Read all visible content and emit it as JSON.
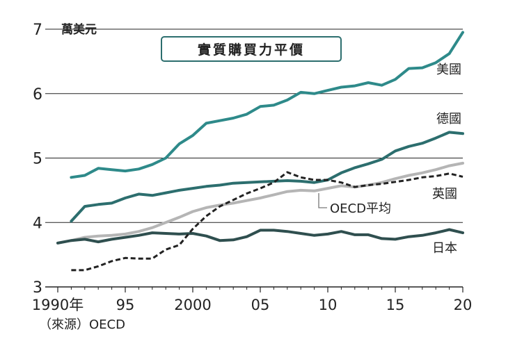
{
  "chart_data": {
    "type": "line",
    "title": "實質購買力平價",
    "ylabel": "萬美元",
    "source": "（來源）OECD",
    "ylim": [
      3,
      7
    ],
    "xlim": [
      1990,
      2020
    ],
    "y_ticks": [
      "3",
      "4",
      "5",
      "6",
      "7"
    ],
    "y_tick_values": [
      3,
      4,
      5,
      6,
      7
    ],
    "x_ticks": [
      "1990年",
      "95",
      "2000",
      "05",
      "10",
      "15",
      "20"
    ],
    "x_tick_values": [
      1990,
      1995,
      2000,
      2005,
      2010,
      2015,
      2020
    ],
    "series": [
      {
        "name": "美國",
        "color": "#2e8a8a",
        "style": "solid",
        "x": [
          1991,
          1992,
          1993,
          1994,
          1995,
          1996,
          1997,
          1998,
          1999,
          2000,
          2001,
          2002,
          2003,
          2004,
          2005,
          2006,
          2007,
          2008,
          2009,
          2010,
          2011,
          2012,
          2013,
          2014,
          2015,
          2016,
          2017,
          2018,
          2019,
          2020
        ],
        "values": [
          4.7,
          4.73,
          4.84,
          4.82,
          4.8,
          4.83,
          4.9,
          5.0,
          5.22,
          5.35,
          5.54,
          5.58,
          5.62,
          5.68,
          5.8,
          5.82,
          5.9,
          6.02,
          6.0,
          6.05,
          6.1,
          6.12,
          6.17,
          6.13,
          6.22,
          6.39,
          6.4,
          6.48,
          6.62,
          6.95
        ]
      },
      {
        "name": "德國",
        "color": "#2c6e6e",
        "style": "solid",
        "x": [
          1991,
          1992,
          1993,
          1994,
          1995,
          1996,
          1997,
          1998,
          1999,
          2000,
          2001,
          2002,
          2003,
          2004,
          2005,
          2006,
          2007,
          2008,
          2009,
          2010,
          2011,
          2012,
          2013,
          2014,
          2015,
          2016,
          2017,
          2018,
          2019,
          2020
        ],
        "values": [
          4.02,
          4.25,
          4.28,
          4.3,
          4.38,
          4.44,
          4.42,
          4.46,
          4.5,
          4.53,
          4.56,
          4.58,
          4.61,
          4.62,
          4.63,
          4.64,
          4.65,
          4.64,
          4.62,
          4.66,
          4.77,
          4.85,
          4.91,
          4.98,
          5.11,
          5.18,
          5.23,
          5.31,
          5.4,
          5.38
        ]
      },
      {
        "name": "OECD平均",
        "color": "#b5b5b5",
        "style": "solid",
        "x": [
          1991,
          1992,
          1993,
          1994,
          1995,
          1996,
          1997,
          1998,
          1999,
          2000,
          2001,
          2002,
          2003,
          2004,
          2005,
          2006,
          2007,
          2008,
          2009,
          2010,
          2011,
          2012,
          2013,
          2014,
          2015,
          2016,
          2017,
          2018,
          2019,
          2020
        ],
        "values": [
          3.72,
          3.77,
          3.79,
          3.8,
          3.82,
          3.86,
          3.92,
          4.0,
          4.08,
          4.17,
          4.23,
          4.27,
          4.3,
          4.34,
          4.38,
          4.43,
          4.48,
          4.5,
          4.49,
          4.53,
          4.57,
          4.55,
          4.58,
          4.62,
          4.68,
          4.73,
          4.77,
          4.82,
          4.88,
          4.92
        ]
      },
      {
        "name": "英國",
        "color": "#222222",
        "style": "dashed",
        "x": [
          1991,
          1992,
          1993,
          1994,
          1995,
          1996,
          1997,
          1998,
          1999,
          2000,
          2001,
          2002,
          2003,
          2004,
          2005,
          2006,
          2007,
          2008,
          2009,
          2010,
          2011,
          2012,
          2013,
          2014,
          2015,
          2016,
          2017,
          2018,
          2019,
          2020
        ],
        "values": [
          3.26,
          3.26,
          3.32,
          3.4,
          3.45,
          3.44,
          3.44,
          3.58,
          3.65,
          3.9,
          4.1,
          4.25,
          4.35,
          4.45,
          4.53,
          4.62,
          4.78,
          4.7,
          4.66,
          4.66,
          4.62,
          4.55,
          4.58,
          4.6,
          4.63,
          4.66,
          4.7,
          4.72,
          4.76,
          4.71
        ]
      },
      {
        "name": "日本",
        "color": "#2f4f4f",
        "style": "solid",
        "x": [
          1990,
          1991,
          1992,
          1993,
          1994,
          1995,
          1996,
          1997,
          1998,
          1999,
          2000,
          2001,
          2002,
          2003,
          2004,
          2005,
          2006,
          2007,
          2008,
          2009,
          2010,
          2011,
          2012,
          2013,
          2014,
          2015,
          2016,
          2017,
          2018,
          2019,
          2020
        ],
        "values": [
          3.68,
          3.72,
          3.74,
          3.7,
          3.74,
          3.77,
          3.8,
          3.84,
          3.83,
          3.82,
          3.83,
          3.79,
          3.72,
          3.73,
          3.78,
          3.88,
          3.88,
          3.86,
          3.83,
          3.8,
          3.82,
          3.86,
          3.81,
          3.81,
          3.75,
          3.74,
          3.78,
          3.8,
          3.84,
          3.89,
          3.84
        ]
      }
    ],
    "annotations": [
      {
        "text": "OECD平均",
        "series": "OECD平均"
      }
    ]
  }
}
